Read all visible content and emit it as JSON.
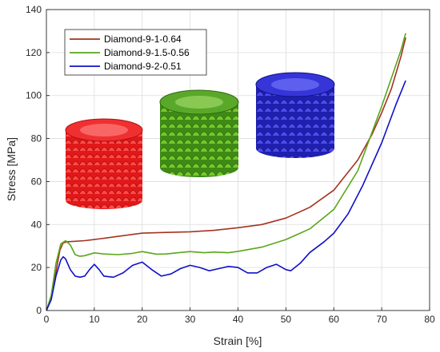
{
  "chart_data": {
    "type": "line",
    "xlabel": "Strain [%]",
    "ylabel": "Stress [MPa]",
    "xlim": [
      0,
      80
    ],
    "ylim": [
      0,
      140
    ],
    "xticks": [
      0,
      10,
      20,
      30,
      40,
      50,
      60,
      70,
      80
    ],
    "yticks": [
      0,
      20,
      40,
      60,
      80,
      100,
      120,
      140
    ],
    "grid": true,
    "legend": "top-left",
    "series": [
      {
        "name": "Diamond-9-1-0.64",
        "color": "#a3331f",
        "x": [
          0,
          1,
          2,
          2.8,
          3.5,
          4.5,
          6,
          8,
          10,
          15,
          20,
          25,
          30,
          35,
          40,
          45,
          50,
          55,
          60,
          65,
          68,
          70,
          72,
          74,
          75
        ],
        "y": [
          0,
          6,
          18,
          28,
          31.5,
          32,
          32.2,
          32.5,
          33,
          34.5,
          36,
          36.3,
          36.6,
          37.3,
          38.5,
          40,
          43,
          48,
          56,
          70,
          82,
          92,
          103,
          118,
          127
        ]
      },
      {
        "name": "Diamond-9-1.5-0.56",
        "color": "#5aa61c",
        "x": [
          0,
          1,
          2,
          3,
          4,
          5,
          6,
          7,
          8,
          10,
          12,
          15,
          18,
          20,
          23,
          25,
          28,
          30,
          33,
          35,
          38,
          40,
          45,
          50,
          55,
          60,
          65,
          70,
          72,
          74,
          75
        ],
        "y": [
          0,
          7,
          22,
          31,
          32.5,
          30.5,
          26,
          25.2,
          25.5,
          26.8,
          26.3,
          26,
          26.6,
          27.4,
          26.2,
          26.3,
          27,
          27.4,
          26.9,
          27.2,
          26.9,
          27.5,
          29.5,
          33,
          38,
          47,
          65,
          95,
          108,
          121,
          129
        ]
      },
      {
        "name": "Diamond-9-2-0.51",
        "color": "#1010c8",
        "x": [
          0,
          1,
          2,
          3,
          3.5,
          4,
          5,
          6,
          7,
          8,
          9,
          10,
          11,
          12,
          14,
          16,
          18,
          20,
          22,
          24,
          26,
          28,
          30,
          32,
          34,
          36,
          38,
          40,
          42,
          44,
          46,
          48,
          50,
          51,
          53,
          55,
          58,
          60,
          63,
          66,
          70,
          73,
          75
        ],
        "y": [
          0,
          5,
          16,
          23.5,
          25,
          24,
          19,
          16,
          15.5,
          16,
          19,
          21.5,
          19,
          16,
          15.5,
          17.5,
          21,
          22.5,
          19,
          16,
          17,
          19.5,
          21,
          20,
          18.5,
          19.5,
          20.5,
          20,
          17.5,
          17.5,
          20,
          21.5,
          19,
          18.5,
          22,
          27,
          32,
          36,
          45,
          58,
          78,
          96,
          107
        ]
      }
    ]
  }
}
